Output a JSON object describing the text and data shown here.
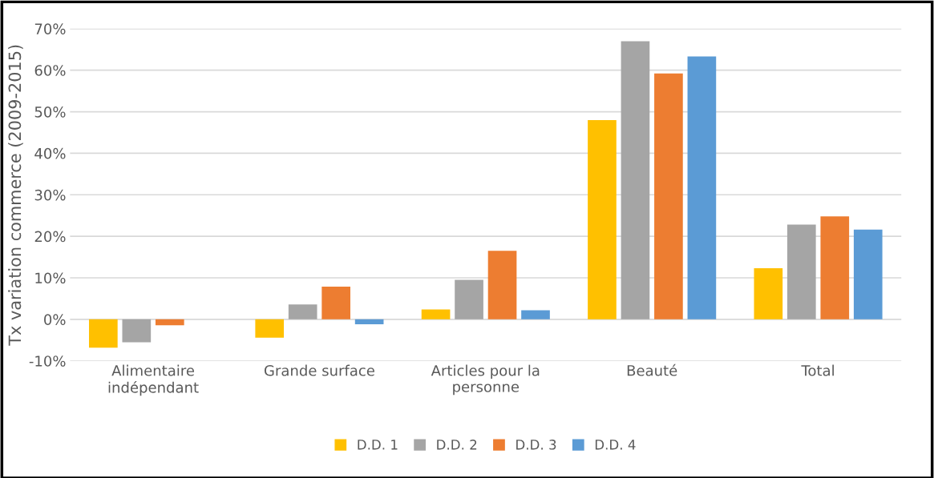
{
  "chart_data": {
    "type": "bar",
    "ylabel": "Tx variation commerce (2009-2015)",
    "categories": [
      "Alimentaire\nindépendant",
      "Grande surface",
      "Articles pour la\npersonne",
      "Beauté",
      "Total"
    ],
    "series": [
      {
        "name": "D.D. 1",
        "color": "#ffc000",
        "values": [
          -6.8,
          -4.4,
          2.4,
          48.0,
          12.3
        ]
      },
      {
        "name": "D.D. 2",
        "color": "#a5a5a5",
        "values": [
          -5.5,
          3.6,
          9.5,
          67.0,
          22.8
        ]
      },
      {
        "name": "D.D. 3",
        "color": "#ed7d31",
        "values": [
          -1.4,
          7.9,
          16.5,
          59.2,
          24.8
        ]
      },
      {
        "name": "D.D. 4",
        "color": "#5b9bd5",
        "values": [
          null,
          -1.2,
          2.2,
          63.3,
          21.6
        ]
      }
    ],
    "ylim": [
      -10,
      70
    ],
    "yticks": [
      {
        "value": -10,
        "label": "-10%"
      },
      {
        "value": 0,
        "label": "0%"
      },
      {
        "value": 10,
        "label": "10%"
      },
      {
        "value": 20,
        "label": "20%"
      },
      {
        "value": 30,
        "label": "30%"
      },
      {
        "value": 40,
        "label": "40%"
      },
      {
        "value": 50,
        "label": "50%"
      },
      {
        "value": 60,
        "label": "60%"
      },
      {
        "value": 70,
        "label": "70%"
      }
    ],
    "grid": "y",
    "legend": "bottom"
  }
}
